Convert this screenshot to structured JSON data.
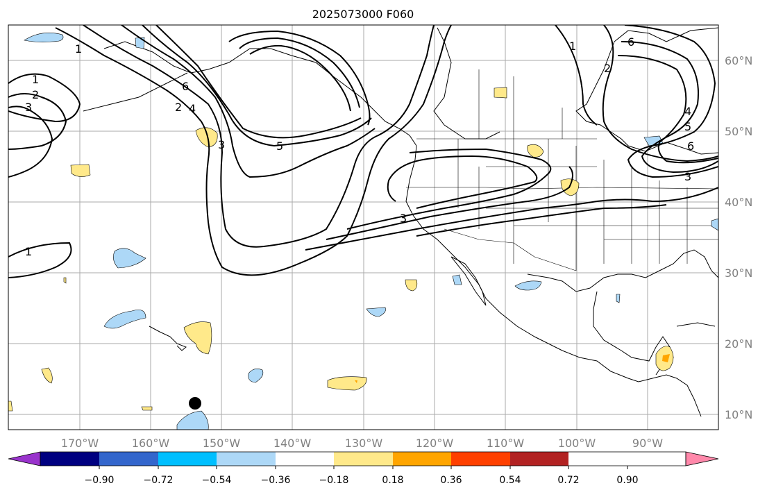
{
  "title": "2025073000 F060",
  "longitude_labels": [
    "170°W",
    "160°W",
    "150°W",
    "140°W",
    "130°W",
    "120°W",
    "110°W",
    "100°W",
    "90°W"
  ],
  "latitude_labels": [
    "60°N",
    "50°N",
    "40°N",
    "30°N",
    "20°N",
    "10°N"
  ],
  "contour_labels": [
    "1",
    "1",
    "2",
    "3",
    "1",
    "2",
    "4",
    "6",
    "3",
    "5",
    "3",
    "1",
    "2",
    "4",
    "5",
    "6",
    "3",
    "6"
  ],
  "colorbar": {
    "tick_labels": [
      "−0.90",
      "−0.72",
      "−0.54",
      "−0.36",
      "−0.18",
      "0.18",
      "0.36",
      "0.54",
      "0.72",
      "0.90"
    ],
    "colors": [
      "#9933cc",
      "#000080",
      "#3366cc",
      "#00bfff",
      "#add8f7",
      "#ffffff",
      "#ffe98a",
      "#ffa500",
      "#ff4000",
      "#b22222",
      "#ff88aa"
    ]
  },
  "colors": {
    "negative_fill": "#add8f7",
    "positive_fill": "#ffe98a",
    "strong_positive_fill": "#ffa500",
    "contour": "#000000",
    "grid": "#aaaaaa",
    "tick_label": "#808080"
  }
}
